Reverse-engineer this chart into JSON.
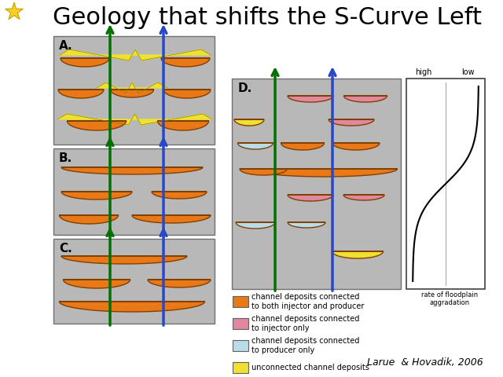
{
  "title": "Geology that shifts the S-Curve Left",
  "subtitle": "Larue  & Hovadik, 2006",
  "title_fontsize": 22,
  "subtitle_fontsize": 9,
  "bg_color": "#ffffff",
  "panel_bg": "#b8b8b8",
  "orange": "#e87818",
  "yellow": "#f0e030",
  "pink": "#e088a0",
  "lightblue": "#b8dce8",
  "star_color": "#f8d020",
  "star_outline": "#c8a000",
  "green_arrow": "#007000",
  "blue_arrow": "#2848c8",
  "legend_labels": [
    "channel deposits connected\nto both injector and producer",
    "channel deposits connected\nto injector only",
    "channel deposits connected\nto producer only",
    "unconnected channel deposits"
  ],
  "legend_colors": [
    "#e87818",
    "#e088a0",
    "#b8dce8",
    "#f0e030"
  ]
}
